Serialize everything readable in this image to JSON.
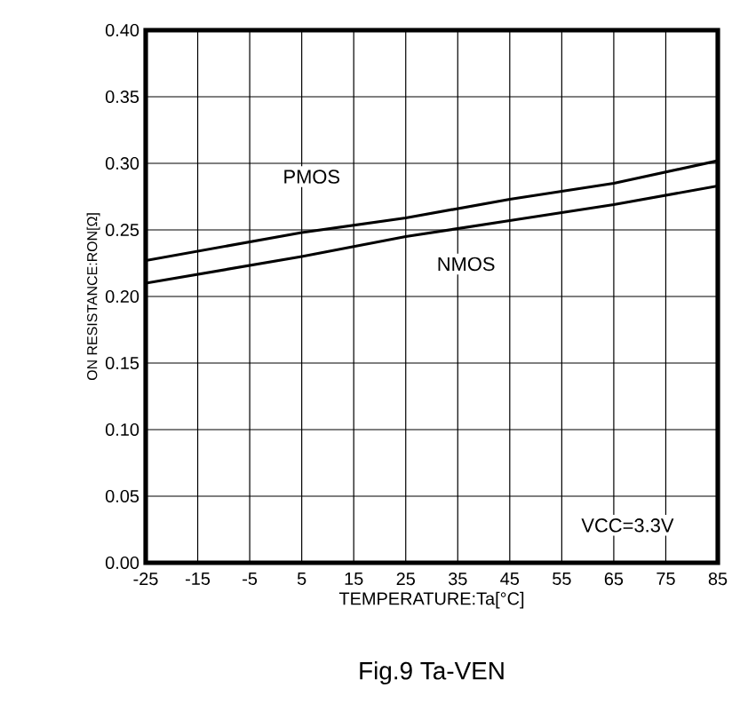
{
  "chart_data": {
    "type": "line",
    "title": "Fig.9 Ta-VEN",
    "xlabel": "TEMPERATURE:Ta[°C]",
    "ylabel": "ON RESISTANCE:RON[Ω]",
    "x": [
      -25,
      5,
      25,
      45,
      65,
      85
    ],
    "series": [
      {
        "name": "PMOS",
        "color": "#000000",
        "values": [
          0.227,
          0.248,
          0.259,
          0.273,
          0.285,
          0.302
        ]
      },
      {
        "name": "NMOS",
        "color": "#000000",
        "values": [
          0.21,
          0.23,
          0.245,
          0.257,
          0.269,
          0.283
        ]
      }
    ],
    "annotations": [
      "VCC=3.3V"
    ],
    "xlim": [
      -25,
      85
    ],
    "xticks": [
      -25,
      -15,
      -5,
      5,
      15,
      25,
      35,
      45,
      55,
      65,
      75,
      85
    ],
    "ylim": [
      0,
      0.4
    ],
    "yticks": [
      {
        "value": 0,
        "label": "0.00"
      },
      {
        "value": 0.05,
        "label": "0.05"
      },
      {
        "value": 0.1,
        "label": "0.10"
      },
      {
        "value": 0.15,
        "label": "0.15"
      },
      {
        "value": 0.2,
        "label": "0.20"
      },
      {
        "value": 0.25,
        "label": "0.25"
      },
      {
        "value": 0.3,
        "label": "0.30"
      },
      {
        "value": 0.35,
        "label": "0.35"
      },
      {
        "value": 0.4,
        "label": "0.40"
      }
    ],
    "grid": true,
    "marker": "none",
    "line_style": "solid"
  }
}
